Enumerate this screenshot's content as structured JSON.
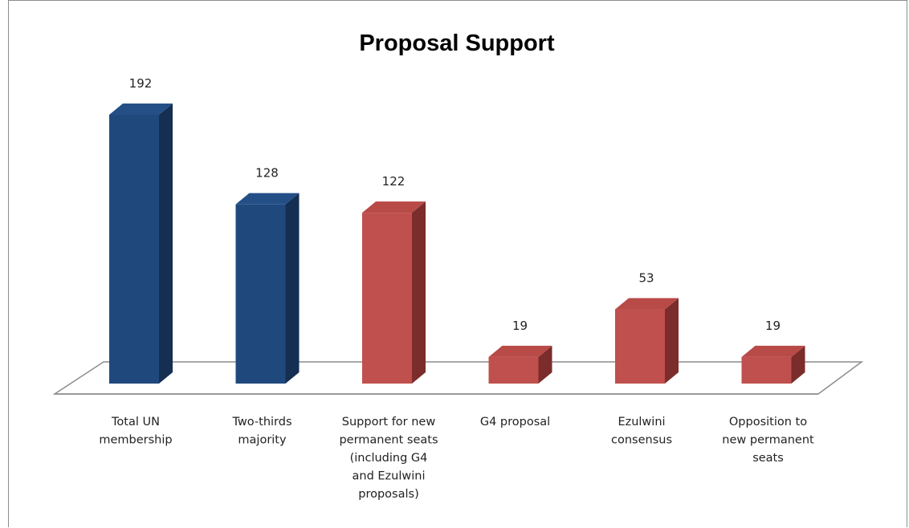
{
  "chart_data": {
    "type": "bar",
    "title": "Proposal Support",
    "xlabel": "",
    "ylabel": "",
    "ylim": [
      0,
      192
    ],
    "grid": false,
    "legend": "none",
    "categories": [
      "Total UN membership",
      "Two-thirds majority",
      "Support for new permanent seats (including G4 and Ezulwini proposals)",
      "G4 proposal",
      "Ezulwini consensus",
      "Opposition to new permanent seats"
    ],
    "category_label_lines": [
      [
        "Total UN",
        "membership"
      ],
      [
        "Two-thirds",
        "majority"
      ],
      [
        "Support for new",
        "permanent seats",
        "(including G4",
        "and Ezulwini",
        "proposals)"
      ],
      [
        "G4 proposal"
      ],
      [
        "Ezulwini",
        "consensus"
      ],
      [
        "Opposition to",
        "new permanent",
        "seats"
      ]
    ],
    "values": [
      192,
      128,
      122,
      19,
      53,
      19
    ],
    "data_labels": [
      "192",
      "128",
      "122",
      "19",
      "53",
      "19"
    ],
    "bar_colors": [
      "#1f497d",
      "#1f497d",
      "#c0504d",
      "#c0504d",
      "#c0504d",
      "#c0504d"
    ],
    "bar_side_colors": [
      "#142f52",
      "#142f52",
      "#7a2d2b",
      "#7a2d2b",
      "#7a2d2b",
      "#7a2d2b"
    ],
    "bar_top_colors": [
      "#234f86",
      "#234f86",
      "#b84a47",
      "#b84a47",
      "#b84a47",
      "#b84a47"
    ]
  }
}
